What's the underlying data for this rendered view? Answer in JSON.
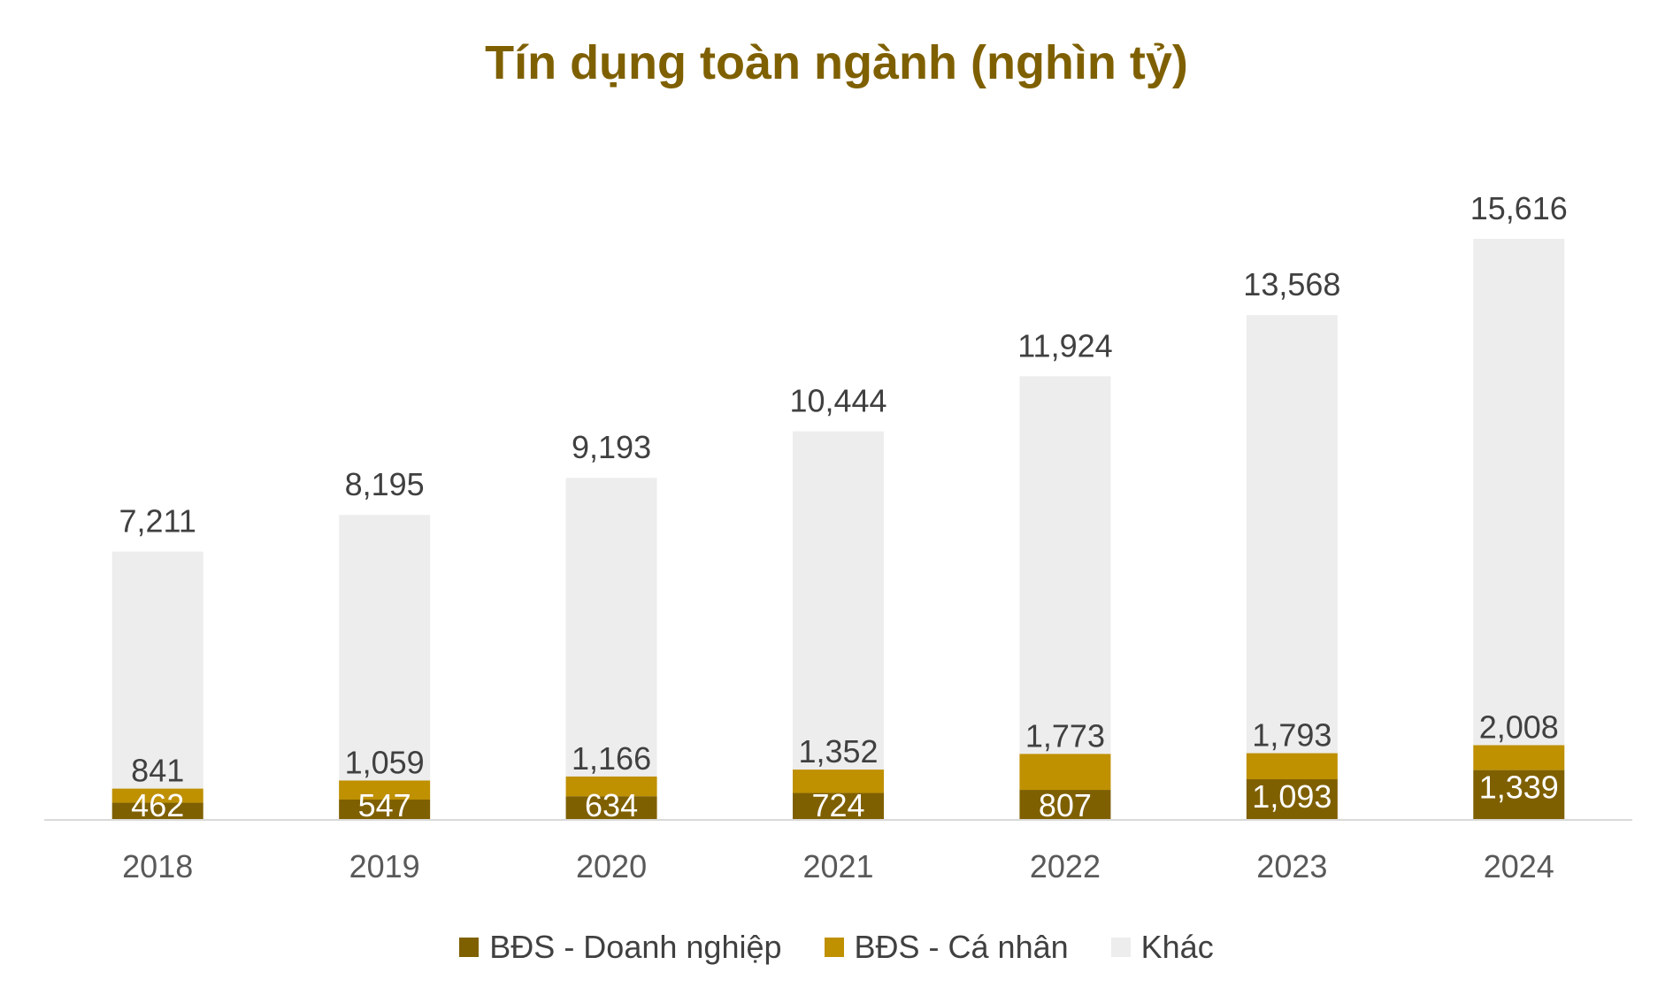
{
  "chart_data": {
    "type": "bar",
    "stacked": true,
    "title": "Tín dụng toàn ngành (nghìn tỷ)",
    "xlabel": "",
    "ylabel": "",
    "categories": [
      "2018",
      "2019",
      "2020",
      "2021",
      "2022",
      "2023",
      "2024"
    ],
    "ylim": [
      0,
      16000
    ],
    "grid": false,
    "legend_position": "bottom",
    "series": [
      {
        "name": "BĐS - Doanh nghiệp",
        "color": "#7f6000",
        "values": [
          462,
          547,
          634,
          724,
          807,
          1093,
          1339
        ],
        "labels": [
          "462",
          "547",
          "634",
          "724",
          "807",
          "1,093",
          "1,339"
        ]
      },
      {
        "name": "BĐS - Cá nhân",
        "color": "#bf9000",
        "cumulative": [
          841,
          1059,
          1166,
          1352,
          1773,
          1793,
          2008
        ],
        "labels": [
          "841",
          "1,059",
          "1,166",
          "1,352",
          "1,773",
          "1,793",
          "2,008"
        ]
      },
      {
        "name": "Khác",
        "color": "#ededed",
        "cumulative": [
          7211,
          8195,
          9193,
          10444,
          11924,
          13568,
          15616
        ],
        "labels": [
          "7,211",
          "8,195",
          "9,193",
          "10,444",
          "11,924",
          "13,568",
          "15,616"
        ]
      }
    ]
  }
}
